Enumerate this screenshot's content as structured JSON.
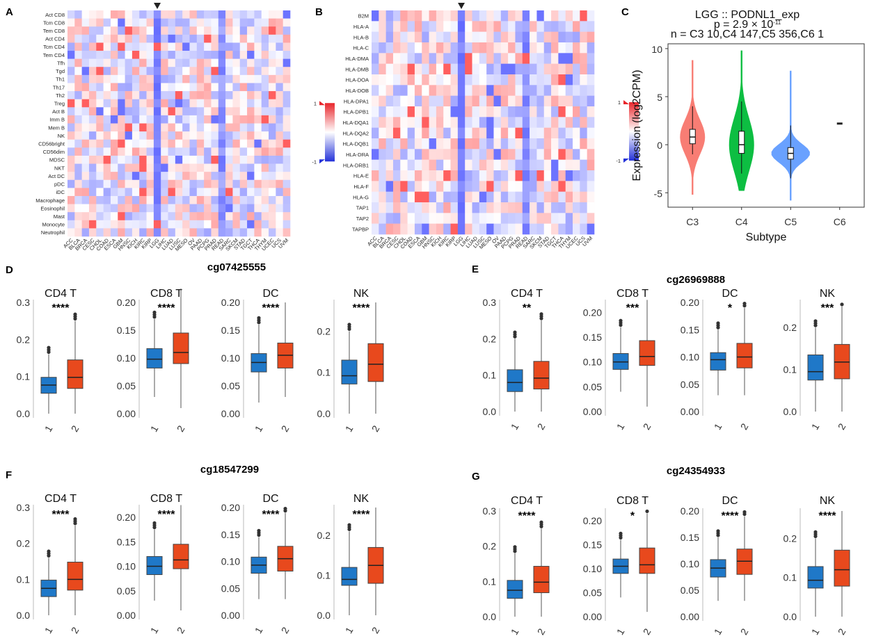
{
  "chart_data": [
    {
      "panel": "A",
      "type": "heatmap",
      "rows": [
        "Act CD8",
        "Tcm CD8",
        "Tem CD8",
        "Act CD4",
        "Tcm CD4",
        "Tem CD4",
        "Tfh",
        "Tgd",
        "Th1",
        "Th17",
        "Th2",
        "Treg",
        "Act B",
        "Imm B",
        "Mem B",
        "NK",
        "CD56bright",
        "CD56dim",
        "MDSC",
        "NKT",
        "Act DC",
        "pDC",
        "iDC",
        "Macrophage",
        "Eosinophil",
        "Mast",
        "Monocyte",
        "Neutrophil"
      ],
      "columns": [
        "ACC",
        "BLCA",
        "BRCA",
        "CESC",
        "CHOL",
        "COAD",
        "ESCA",
        "GBM",
        "HNSC",
        "KICH",
        "KIRC",
        "KIRP",
        "LGG",
        "LIHC",
        "LUAD",
        "LUSC",
        "MESO",
        "OV",
        "PAAD",
        "PCPG",
        "PRAD",
        "READ",
        "SARC",
        "SKCM",
        "STAD",
        "TGCT",
        "THCA",
        "THYM",
        "UCEC",
        "UCS",
        "UVM"
      ],
      "highlight_column": "LGG",
      "legend": {
        "max_label": "1",
        "min_label": "-1"
      }
    },
    {
      "panel": "B",
      "type": "heatmap",
      "rows": [
        "B2M",
        "HLA-A",
        "HLA-B",
        "HLA-C",
        "HLA-DMA",
        "HLA-DMB",
        "HLA-DOA",
        "HLA-DOB",
        "HLA-DPA1",
        "HLA-DPB1",
        "HLA-DQA1",
        "HLA-DQA2",
        "HLA-DQB1",
        "HLA-DRA",
        "HLA-DRB1",
        "HLA-E",
        "HLA-F",
        "HLA-G",
        "TAP1",
        "TAP2",
        "TAPBP"
      ],
      "columns": [
        "ACC",
        "BLCA",
        "BRCA",
        "CESC",
        "CHOL",
        "COAD",
        "ESCA",
        "GBM",
        "HNSC",
        "KICH",
        "KIRC",
        "KIRP",
        "LGG",
        "LIHC",
        "LUAD",
        "LUSC",
        "MESO",
        "OV",
        "PAAD",
        "PCPG",
        "PRAD",
        "READ",
        "SARC",
        "SKCM",
        "STAD",
        "TGCT",
        "THCA",
        "THYM",
        "UCEC",
        "UCS",
        "UVM"
      ],
      "highlight_column": "LGG",
      "legend": {
        "max_label": "1",
        "min_label": "-1"
      }
    },
    {
      "panel": "C",
      "type": "violin",
      "title": "LGG :: PODNL1_exp",
      "pvalue": "p = 2.9 × 10",
      "pvalue_exp": "-11",
      "n_text": "n = C3 10,C4 147,C5 356,C6 1",
      "xlabel": "Subtype",
      "ylabel": "Expression (log2CPM)",
      "ylim": [
        -6.5,
        10.5
      ],
      "yticks": [
        -5,
        0,
        5,
        10
      ],
      "groups": [
        {
          "name": "C3",
          "color": "#F8766D",
          "q1": 0.1,
          "median": 0.8,
          "q3": 1.6,
          "whisker_low": -1.0,
          "whisker_high": 4.0,
          "min": -5.2,
          "max": 8.8
        },
        {
          "name": "C4",
          "color": "#00BA38",
          "q1": -0.9,
          "median": 0.0,
          "q3": 1.4,
          "whisker_low": -3.0,
          "whisker_high": 4.5,
          "min": -4.8,
          "max": 9.8
        },
        {
          "name": "C5",
          "color": "#619CFF",
          "q1": -1.5,
          "median": -0.9,
          "q3": -0.3,
          "whisker_low": -3.5,
          "whisker_high": 2.0,
          "min": -5.8,
          "max": 7.7
        },
        {
          "name": "C6",
          "color": "#222222",
          "median": 2.2
        }
      ]
    },
    {
      "panel": "D",
      "type": "box",
      "title": "cg07425555",
      "subplots": [
        {
          "name": "CD4 T",
          "sig": "****",
          "ylim": [
            0,
            0.3
          ],
          "yticks": [
            "0.0",
            "0.1",
            "0.2",
            "0.3"
          ],
          "groups": [
            {
              "x": "1",
              "q1": 0.055,
              "median": 0.077,
              "q3": 0.098,
              "lo": 0.0,
              "hi": 0.16
            },
            {
              "x": "2",
              "q1": 0.068,
              "median": 0.098,
              "q3": 0.145,
              "lo": 0.0,
              "hi": 0.25
            }
          ]
        },
        {
          "name": "CD8 T",
          "sig": "****",
          "ylim": [
            0,
            0.2
          ],
          "yticks": [
            "0.00",
            "0.05",
            "0.10",
            "0.15",
            "0.20"
          ],
          "groups": [
            {
              "x": "1",
              "q1": 0.082,
              "median": 0.098,
              "q3": 0.117,
              "lo": 0.03,
              "hi": 0.17
            },
            {
              "x": "2",
              "q1": 0.09,
              "median": 0.11,
              "q3": 0.145,
              "lo": 0.01,
              "hi": 0.225
            }
          ]
        },
        {
          "name": "DC",
          "sig": "****",
          "ylim": [
            0,
            0.2
          ],
          "yticks": [
            "0.00",
            "0.05",
            "0.10",
            "0.15",
            "0.20"
          ],
          "groups": [
            {
              "x": "1",
              "q1": 0.075,
              "median": 0.092,
              "q3": 0.108,
              "lo": 0.02,
              "hi": 0.16
            },
            {
              "x": "2",
              "q1": 0.082,
              "median": 0.105,
              "q3": 0.127,
              "lo": 0.03,
              "hi": 0.2
            }
          ]
        },
        {
          "name": "NK",
          "sig": "****",
          "ylim": [
            0,
            0.27
          ],
          "yticks": [
            "0.0",
            "0.1",
            "0.2"
          ],
          "groups": [
            {
              "x": "1",
              "q1": 0.072,
              "median": 0.092,
              "q3": 0.13,
              "lo": 0.0,
              "hi": 0.2
            },
            {
              "x": "2",
              "q1": 0.078,
              "median": 0.12,
              "q3": 0.17,
              "lo": 0.0,
              "hi": 0.27
            }
          ]
        }
      ]
    },
    {
      "panel": "E",
      "type": "box",
      "title": "cg26969888",
      "subplots": [
        {
          "name": "CD4 T",
          "sig": "**",
          "ylim": [
            0,
            0.3
          ],
          "yticks": [
            "0.0",
            "0.1",
            "0.2",
            "0.3"
          ],
          "groups": [
            {
              "x": "1",
              "q1": 0.055,
              "median": 0.08,
              "q3": 0.115,
              "lo": 0.0,
              "hi": 0.2
            },
            {
              "x": "2",
              "q1": 0.062,
              "median": 0.092,
              "q3": 0.138,
              "lo": 0.0,
              "hi": 0.25
            }
          ]
        },
        {
          "name": "CD8 T",
          "sig": "***",
          "ylim": [
            0,
            0.22
          ],
          "yticks": [
            "0.00",
            "0.05",
            "0.10",
            "0.15",
            "0.20"
          ],
          "groups": [
            {
              "x": "1",
              "q1": 0.085,
              "median": 0.1,
              "q3": 0.117,
              "lo": 0.04,
              "hi": 0.17
            },
            {
              "x": "2",
              "q1": 0.093,
              "median": 0.111,
              "q3": 0.143,
              "lo": 0.01,
              "hi": 0.225
            }
          ]
        },
        {
          "name": "DC",
          "sig": "*",
          "ylim": [
            0,
            0.2
          ],
          "yticks": [
            "0.00",
            "0.05",
            "0.10",
            "0.15",
            "0.20"
          ],
          "groups": [
            {
              "x": "1",
              "q1": 0.076,
              "median": 0.095,
              "q3": 0.108,
              "lo": 0.03,
              "hi": 0.15
            },
            {
              "x": "2",
              "q1": 0.08,
              "median": 0.1,
              "q3": 0.125,
              "lo": 0.03,
              "hi": 0.19
            }
          ]
        },
        {
          "name": "NK",
          "sig": "***",
          "ylim": [
            0,
            0.26
          ],
          "yticks": [
            "0.0",
            "0.1",
            "0.2"
          ],
          "groups": [
            {
              "x": "1",
              "q1": 0.075,
              "median": 0.095,
              "q3": 0.135,
              "lo": 0.0,
              "hi": 0.2
            },
            {
              "x": "2",
              "q1": 0.078,
              "median": 0.118,
              "q3": 0.16,
              "lo": 0.0,
              "hi": 0.25
            }
          ]
        }
      ]
    },
    {
      "panel": "F",
      "type": "box",
      "title": "cg18547299",
      "subplots": [
        {
          "name": "CD4 T",
          "sig": "****",
          "ylim": [
            0,
            0.3
          ],
          "yticks": [
            "0.0",
            "0.1",
            "0.2",
            "0.3"
          ],
          "groups": [
            {
              "x": "1",
              "q1": 0.052,
              "median": 0.075,
              "q3": 0.098,
              "lo": 0.0,
              "hi": 0.16
            },
            {
              "x": "2",
              "q1": 0.07,
              "median": 0.1,
              "q3": 0.148,
              "lo": 0.0,
              "hi": 0.25
            }
          ]
        },
        {
          "name": "CD8 T",
          "sig": "****",
          "ylim": [
            0,
            0.22
          ],
          "yticks": [
            "0.00",
            "0.05",
            "0.10",
            "0.15",
            "0.20"
          ],
          "groups": [
            {
              "x": "1",
              "q1": 0.083,
              "median": 0.1,
              "q3": 0.12,
              "lo": 0.03,
              "hi": 0.175
            },
            {
              "x": "2",
              "q1": 0.095,
              "median": 0.113,
              "q3": 0.145,
              "lo": 0.01,
              "hi": 0.225
            }
          ]
        },
        {
          "name": "DC",
          "sig": "****",
          "ylim": [
            0,
            0.2
          ],
          "yticks": [
            "0.00",
            "0.05",
            "0.10",
            "0.15",
            "0.20"
          ],
          "groups": [
            {
              "x": "1",
              "q1": 0.078,
              "median": 0.093,
              "q3": 0.108,
              "lo": 0.03,
              "hi": 0.145
            },
            {
              "x": "2",
              "q1": 0.082,
              "median": 0.105,
              "q3": 0.128,
              "lo": 0.03,
              "hi": 0.19
            }
          ]
        },
        {
          "name": "NK",
          "sig": "****",
          "ylim": [
            0,
            0.27
          ],
          "yticks": [
            "0.0",
            "0.1",
            "0.2"
          ],
          "groups": [
            {
              "x": "1",
              "q1": 0.075,
              "median": 0.09,
              "q3": 0.12,
              "lo": 0.0,
              "hi": 0.21
            },
            {
              "x": "2",
              "q1": 0.08,
              "median": 0.125,
              "q3": 0.17,
              "lo": 0.0,
              "hi": 0.27
            }
          ]
        }
      ]
    },
    {
      "panel": "G",
      "type": "box",
      "title": "cg24354933",
      "subplots": [
        {
          "name": "CD4 T",
          "sig": "****",
          "ylim": [
            0,
            0.3
          ],
          "yticks": [
            "0.0",
            "0.1",
            "0.2",
            "0.3"
          ],
          "groups": [
            {
              "x": "1",
              "q1": 0.052,
              "median": 0.075,
              "q3": 0.103,
              "lo": 0.0,
              "hi": 0.18
            },
            {
              "x": "2",
              "q1": 0.068,
              "median": 0.098,
              "q3": 0.143,
              "lo": 0.0,
              "hi": 0.25
            }
          ]
        },
        {
          "name": "CD8 T",
          "sig": "*",
          "ylim": [
            0,
            0.22
          ],
          "yticks": [
            "0.00",
            "0.05",
            "0.10",
            "0.15",
            "0.20"
          ],
          "groups": [
            {
              "x": "1",
              "q1": 0.09,
              "median": 0.105,
              "q3": 0.12,
              "lo": 0.04,
              "hi": 0.16
            },
            {
              "x": "2",
              "q1": 0.09,
              "median": 0.108,
              "q3": 0.143,
              "lo": 0.01,
              "hi": 0.215
            }
          ]
        },
        {
          "name": "DC",
          "sig": "****",
          "ylim": [
            0,
            0.2
          ],
          "yticks": [
            "0.00",
            "0.05",
            "0.10",
            "0.15",
            "0.20"
          ],
          "groups": [
            {
              "x": "1",
              "q1": 0.075,
              "median": 0.092,
              "q3": 0.108,
              "lo": 0.03,
              "hi": 0.15
            },
            {
              "x": "2",
              "q1": 0.08,
              "median": 0.105,
              "q3": 0.128,
              "lo": 0.03,
              "hi": 0.19
            }
          ]
        },
        {
          "name": "NK",
          "sig": "****",
          "ylim": [
            0,
            0.27
          ],
          "yticks": [
            "0.0",
            "0.1",
            "0.2"
          ],
          "groups": [
            {
              "x": "1",
              "q1": 0.073,
              "median": 0.093,
              "q3": 0.128,
              "lo": 0.0,
              "hi": 0.2
            },
            {
              "x": "2",
              "q1": 0.078,
              "median": 0.12,
              "q3": 0.17,
              "lo": 0.0,
              "hi": 0.27
            }
          ]
        }
      ]
    }
  ],
  "colors": {
    "group1": "#1F78C8",
    "group2": "#E8491D",
    "heat_pos": "#E8262B",
    "heat_neg": "#2432D9",
    "highlight": "#2E46E0"
  }
}
